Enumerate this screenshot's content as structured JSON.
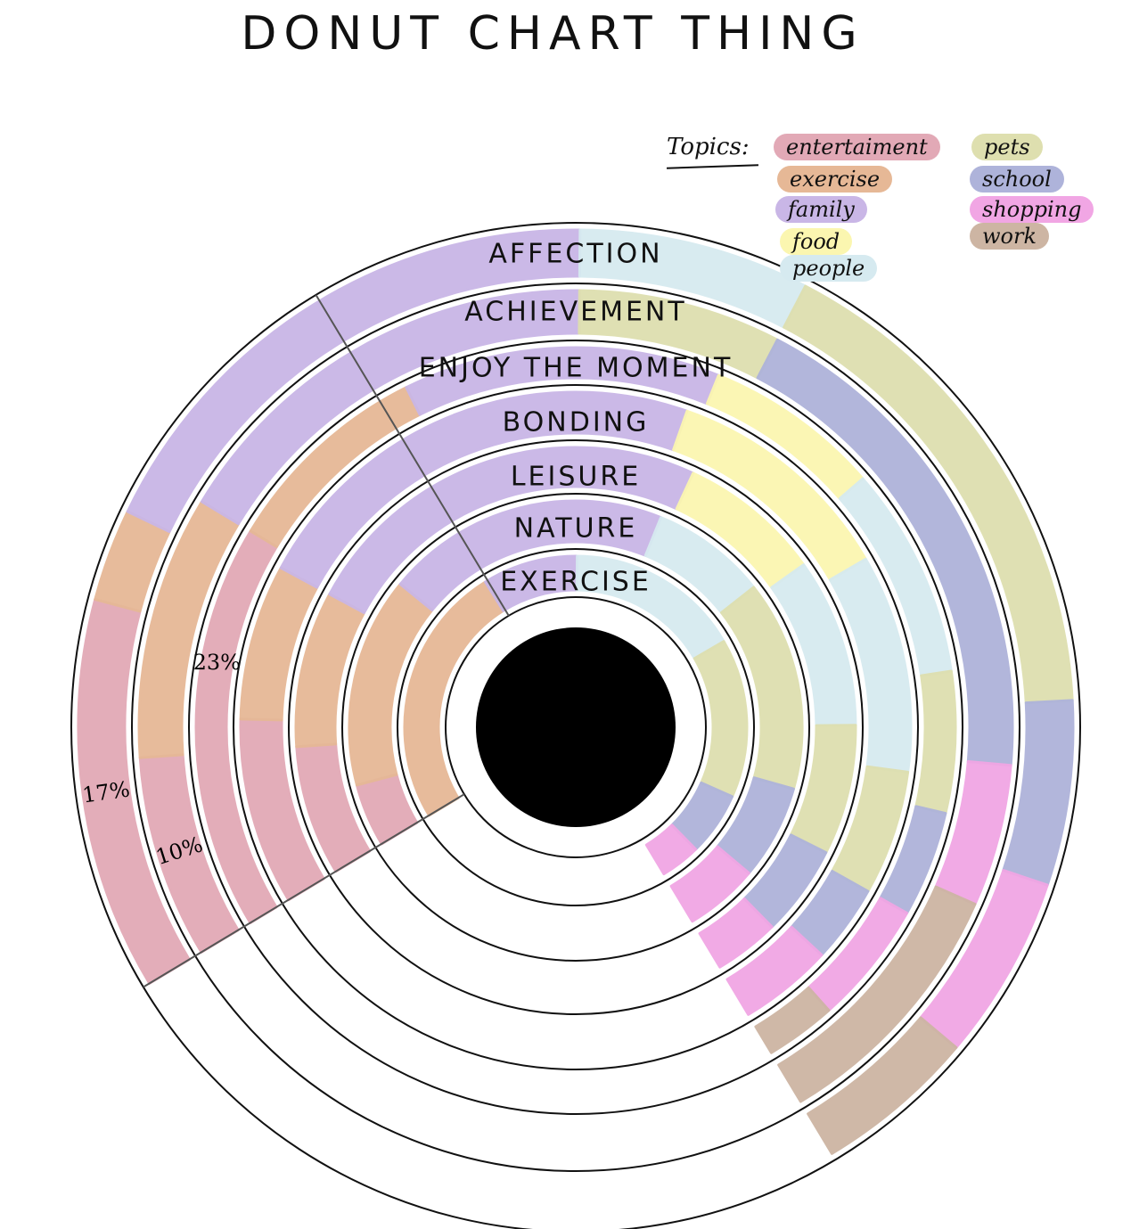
{
  "title": "DONUT CHART THING",
  "legend_heading": "Topics:",
  "colors": {
    "entertainment": "#e2a9b6",
    "exercise": "#e6b896",
    "family": "#c9b6e6",
    "food": "#fbf6b0",
    "people": "#d6eaf0",
    "pets": "#dedfaf",
    "school": "#aeb3da",
    "shopping": "#f1a6e4",
    "work": "#cdb5a3"
  },
  "chart_data": {
    "type": "donut",
    "title": "DONUT CHART THING",
    "legend": {
      "title": "Topics:",
      "placement": "top-right",
      "entries": [
        "entertaiment",
        "exercise",
        "family",
        "food",
        "people",
        "pets",
        "school",
        "shopping",
        "work"
      ]
    },
    "start_angle_deg": -31,
    "total_degrees": 270,
    "rings": [
      {
        "label": "EXERCISE",
        "segments": [
          {
            "topic": "exercise",
            "percent": 33
          },
          {
            "topic": "family",
            "percent": 12
          },
          {
            "topic": "people",
            "percent": 22
          },
          {
            "topic": "pets",
            "percent": 20
          },
          {
            "topic": "school",
            "percent": 8
          },
          {
            "topic": "shopping",
            "percent": 5
          }
        ]
      },
      {
        "label": "NATURE",
        "segments": [
          {
            "topic": "entertainment",
            "percent": 6
          },
          {
            "topic": "exercise",
            "percent": 20
          },
          {
            "topic": "family",
            "percent": 27
          },
          {
            "topic": "people",
            "percent": 11
          },
          {
            "topic": "pets",
            "percent": 20
          },
          {
            "topic": "school",
            "percent": 9
          },
          {
            "topic": "shopping",
            "percent": 7
          }
        ]
      },
      {
        "label": "LEISURE",
        "segments": [
          {
            "topic": "entertainment",
            "percent": 10
          },
          {
            "topic": "exercise",
            "percent": 12
          },
          {
            "topic": "family",
            "percent": 32
          },
          {
            "topic": "food",
            "percent": 11
          },
          {
            "topic": "people",
            "percent": 13
          },
          {
            "topic": "pets",
            "percent": 10
          },
          {
            "topic": "school",
            "percent": 7
          },
          {
            "topic": "shopping",
            "percent": 5
          }
        ]
      },
      {
        "label": "BONDING",
        "segments": [
          {
            "topic": "entertainment",
            "percent": 12
          },
          {
            "topic": "exercise",
            "percent": 10
          },
          {
            "topic": "family",
            "percent": 30
          },
          {
            "topic": "food",
            "percent": 15
          },
          {
            "topic": "people",
            "percent": 14
          },
          {
            "topic": "pets",
            "percent": 8
          },
          {
            "topic": "school",
            "percent": 5
          },
          {
            "topic": "shopping",
            "percent": 6
          }
        ]
      },
      {
        "label": "ENJOY THE MOMENT",
        "segments": [
          {
            "topic": "entertainment",
            "percent": 23,
            "label": "23%"
          },
          {
            "topic": "exercise",
            "percent": 12
          },
          {
            "topic": "family",
            "percent": 18
          },
          {
            "topic": "food",
            "percent": 10
          },
          {
            "topic": "people",
            "percent": 12
          },
          {
            "topic": "pets",
            "percent": 8
          },
          {
            "topic": "school",
            "percent": 6
          },
          {
            "topic": "shopping",
            "percent": 7
          },
          {
            "topic": "work",
            "percent": 4
          }
        ]
      },
      {
        "label": "ACHIEVEMENT",
        "segments": [
          {
            "topic": "entertainment",
            "percent": 10,
            "label": "10%"
          },
          {
            "topic": "exercise",
            "percent": 13
          },
          {
            "topic": "family",
            "percent": 22
          },
          {
            "topic": "pets",
            "percent": 10
          },
          {
            "topic": "school",
            "percent": 25
          },
          {
            "topic": "shopping",
            "percent": 7
          },
          {
            "topic": "work",
            "percent": 13
          }
        ]
      },
      {
        "label": "AFFECTION",
        "segments": [
          {
            "topic": "entertainment",
            "percent": 17,
            "label": "17%"
          },
          {
            "topic": "exercise",
            "percent": 4
          },
          {
            "topic": "family",
            "percent": 24
          },
          {
            "topic": "people",
            "percent": 10
          },
          {
            "topic": "pets",
            "percent": 22
          },
          {
            "topic": "school",
            "percent": 8
          },
          {
            "topic": "shopping",
            "percent": 8
          },
          {
            "topic": "work",
            "percent": 7
          }
        ]
      }
    ]
  }
}
